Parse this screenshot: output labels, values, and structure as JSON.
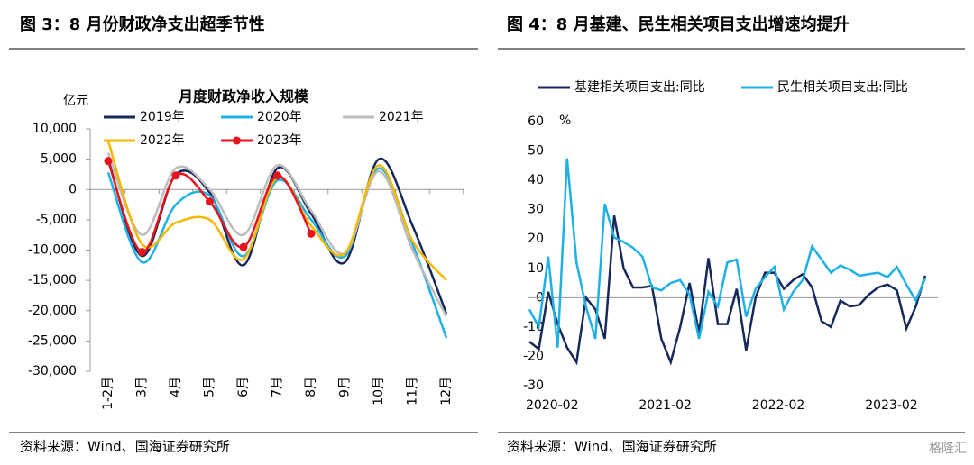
{
  "figure_titles": [
    "图 3：8 月份财政净支出超季节性",
    "图 4：8 月基建、民生相关项目支出增速均提升"
  ],
  "sources": [
    "资料来源：Wind、国海证券研究所",
    "资料来源：Wind、国海证券研究所"
  ],
  "watermark": "格隆汇",
  "chart_data": [
    {
      "type": "line",
      "title": "月度财政净收入规模",
      "y_label": "亿元",
      "smooth": true,
      "categories": [
        "1-2月",
        "3月",
        "4月",
        "5月",
        "6月",
        "7月",
        "8月",
        "9月",
        "10月",
        "11月",
        "12月"
      ],
      "ylim": [
        -30000,
        10000
      ],
      "yticks": [
        {
          "value": 10000,
          "label": "10,000"
        },
        {
          "value": 5000,
          "label": "5,000"
        },
        0,
        {
          "value": -5000,
          "label": "-5,000"
        },
        {
          "value": -10000,
          "label": "-10,000"
        },
        {
          "value": -15000,
          "label": "-15,000"
        },
        {
          "value": -20000,
          "label": "-20,000"
        },
        {
          "value": -25000,
          "label": "-25,000"
        },
        {
          "value": -30000,
          "label": "-30,000"
        }
      ],
      "series": [
        {
          "name": "2019年",
          "color": "#17285a",
          "values": [
            5000,
            -11000,
            2500,
            -500,
            -12500,
            3500,
            -4000,
            -12000,
            5000,
            -6000,
            -20500
          ]
        },
        {
          "name": "2020年",
          "color": "#1fb0e6",
          "values": [
            2800,
            -12000,
            -2500,
            -1000,
            -11000,
            1500,
            -5000,
            -11000,
            3500,
            -9000,
            -24500
          ]
        },
        {
          "name": "2021年",
          "color": "#bdbdbd",
          "values": [
            6000,
            -7500,
            3500,
            0,
            -7500,
            4000,
            -3500,
            -10500,
            3000,
            -10000,
            -21000
          ]
        },
        {
          "name": "2022年",
          "color": "#f5b800",
          "values": [
            8000,
            -9000,
            -5500,
            -5000,
            -11500,
            2000,
            -6000,
            -10500,
            4000,
            -8500,
            -15000
          ]
        },
        {
          "name": "2023年",
          "color": "#e8141b",
          "markers": true,
          "values": [
            4700,
            -10300,
            2300,
            -2000,
            -9500,
            2300,
            -7300,
            null,
            null,
            null,
            null
          ]
        }
      ]
    },
    {
      "type": "line",
      "y_label": "%",
      "x": [
        "2020-02",
        "2020-03",
        "2020-04",
        "2020-05",
        "2020-06",
        "2020-07",
        "2020-08",
        "2020-09",
        "2020-10",
        "2020-11",
        "2020-12",
        "2021-01",
        "2021-02",
        "2021-03",
        "2021-04",
        "2021-05",
        "2021-06",
        "2021-07",
        "2021-08",
        "2021-09",
        "2021-10",
        "2021-11",
        "2021-12",
        "2022-01",
        "2022-02",
        "2022-03",
        "2022-04",
        "2022-05",
        "2022-06",
        "2022-07",
        "2022-08",
        "2022-09",
        "2022-10",
        "2022-11",
        "2022-12",
        "2023-01",
        "2023-02",
        "2023-03",
        "2023-04",
        "2023-05",
        "2023-06",
        "2023-07",
        "2023-08"
      ],
      "xticks": [
        "2020-02",
        "2021-02",
        "2022-02",
        "2023-02"
      ],
      "ylim": [
        -30,
        60
      ],
      "yticks": [
        60,
        50,
        40,
        30,
        20,
        10,
        0,
        -10,
        -20,
        -30
      ],
      "series": [
        {
          "name": "基建相关项目支出:同比",
          "color": "#17285a",
          "values": [
            -15,
            -17.5,
            2,
            -9,
            -17,
            -22,
            0,
            -4,
            -14,
            28,
            10,
            3.5,
            3.5,
            4,
            -14,
            -22,
            -10,
            5,
            -12,
            13.5,
            -9,
            -9,
            3,
            -18,
            0,
            8.5,
            8.5,
            3,
            6,
            8,
            3.5,
            -8,
            -10,
            -1,
            -3,
            -2.5,
            1,
            3.5,
            4.5,
            2.5,
            -10.5,
            -3,
            7.5
          ]
        },
        {
          "name": "民生相关项目支出:同比",
          "color": "#1fb0e6",
          "values": [
            -4,
            -10,
            14,
            -17,
            47.5,
            12,
            -3,
            -14,
            32,
            20.5,
            19,
            17,
            14,
            3.5,
            2.5,
            5,
            6,
            1,
            -14,
            2,
            -3,
            12,
            13,
            -6.5,
            3,
            7,
            10.5,
            -4,
            2,
            6,
            17.5,
            13,
            8.5,
            11,
            9.5,
            7.5,
            8,
            8.5,
            7,
            10.5,
            4.5,
            -1,
            6.5
          ]
        }
      ]
    }
  ]
}
